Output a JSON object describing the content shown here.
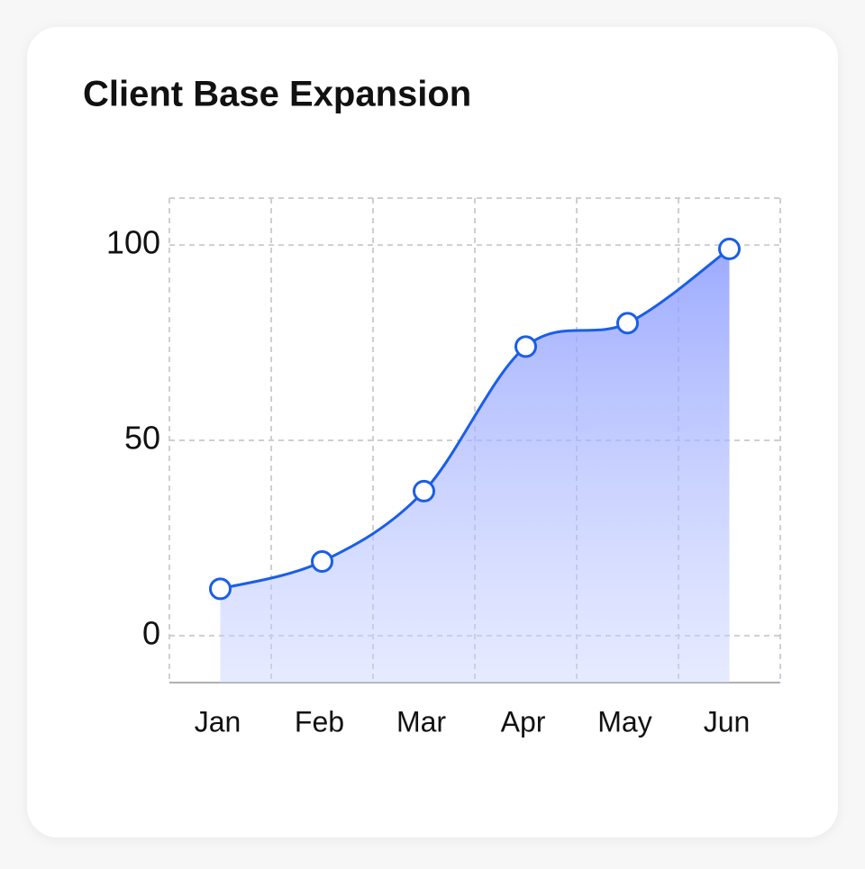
{
  "chart_data": {
    "type": "area",
    "title": "Client Base Expansion",
    "categories": [
      "Jan",
      "Feb",
      "Mar",
      "Apr",
      "May",
      "Jun"
    ],
    "values": [
      12,
      19,
      37,
      74,
      80,
      99
    ],
    "color": "#1a5ee8",
    "ylim": [
      -12,
      112
    ],
    "yticks": [
      0,
      50,
      100
    ],
    "grid": true
  }
}
